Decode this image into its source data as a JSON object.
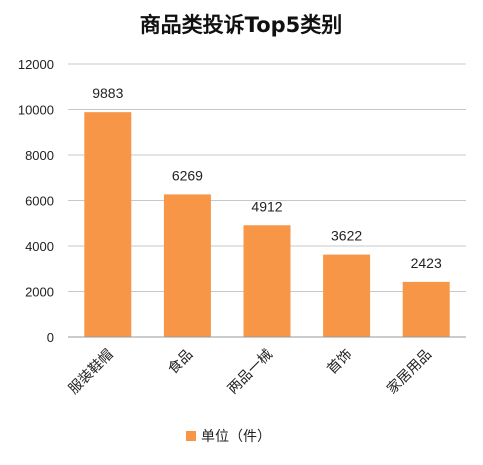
{
  "chart_data": {
    "type": "bar",
    "title": "商品类投诉Top5类别",
    "categories": [
      "服装鞋帽",
      "食品",
      "两品一械",
      "首饰",
      "家居用品"
    ],
    "series": [
      {
        "name": "单位（件）",
        "values": [
          9883,
          6269,
          4912,
          3622,
          2423
        ]
      }
    ],
    "ylim": [
      0,
      12000
    ],
    "yticks": [
      0,
      2000,
      4000,
      6000,
      8000,
      10000,
      12000
    ],
    "grid": true,
    "legend": "bottom",
    "data_labels": true,
    "colors": {
      "bar": "#F79646"
    }
  }
}
